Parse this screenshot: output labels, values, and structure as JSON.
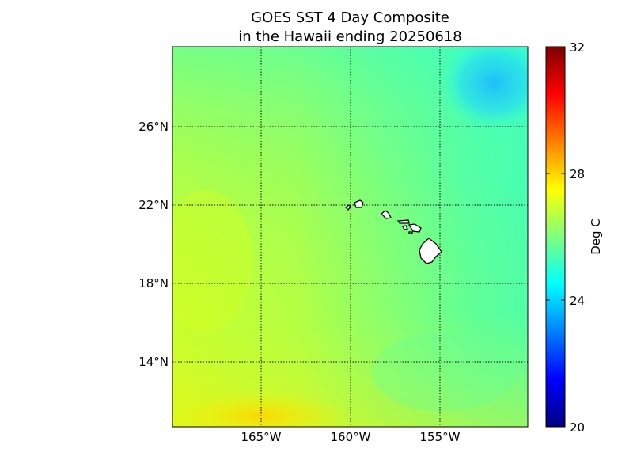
{
  "title": {
    "line1": "GOES SST 4 Day Composite",
    "line2": "in the Hawaii ending 20250618"
  },
  "map": {
    "type": "heatmap",
    "projection": "cylindrical",
    "lon_ticks": [
      {
        "value": -165,
        "label": "165°W"
      },
      {
        "value": -160,
        "label": "160°W"
      },
      {
        "value": -155,
        "label": "155°W"
      }
    ],
    "lat_ticks": [
      {
        "value": 26,
        "label": "26°N"
      },
      {
        "value": 22,
        "label": "22°N"
      },
      {
        "value": 18,
        "label": "18°N"
      },
      {
        "value": 14,
        "label": "14°N"
      }
    ],
    "lon_range": [
      -170,
      -150
    ],
    "lat_range": [
      10,
      30
    ],
    "gridlines": "dotted"
  },
  "colorbar": {
    "label": "Deg C",
    "min": 20,
    "max": 32,
    "ticks": [
      {
        "value": 32,
        "label": "32"
      },
      {
        "value": 28,
        "label": "28"
      },
      {
        "value": 24,
        "label": "24"
      },
      {
        "value": 20,
        "label": "20"
      }
    ],
    "colormap": "jet"
  },
  "islands": [
    "Niihau",
    "Kauai",
    "Oahu",
    "Molokai",
    "Lanai",
    "Maui",
    "Kahoolawe",
    "Hawaii"
  ]
}
